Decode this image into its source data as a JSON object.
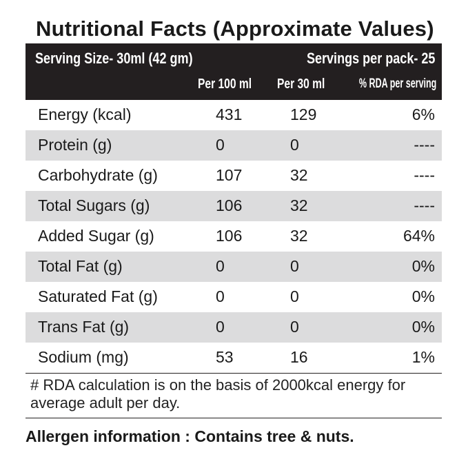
{
  "title": "Nutritional Facts (Approximate Values)",
  "header": {
    "serving_size": "Serving Size-  30ml (42 gm)",
    "servings_per_pack": "Servings per pack- 25",
    "col_per100": "Per 100 ml",
    "col_per30": "Per 30 ml",
    "col_rda": "% RDA per serving"
  },
  "rows": [
    {
      "name": "Energy (kcal)",
      "per100": "431",
      "per30": "129",
      "rda": "6%"
    },
    {
      "name": "Protein (g)",
      "per100": "0",
      "per30": "0",
      "rda": "----"
    },
    {
      "name": "Carbohydrate (g)",
      "per100": "107",
      "per30": "32",
      "rda": "----"
    },
    {
      "name": "Total Sugars (g)",
      "per100": "106",
      "per30": "32",
      "rda": "----"
    },
    {
      "name": "Added Sugar (g)",
      "per100": "106",
      "per30": "32",
      "rda": "64%"
    },
    {
      "name": "Total Fat (g)",
      "per100": "0",
      "per30": "0",
      "rda": "0%"
    },
    {
      "name": "Saturated Fat (g)",
      "per100": "0",
      "per30": "0",
      "rda": "0%"
    },
    {
      "name": "Trans Fat (g)",
      "per100": "0",
      "per30": "0",
      "rda": "0%"
    },
    {
      "name": "Sodium (mg)",
      "per100": "53",
      "per30": "16",
      "rda": "1%"
    }
  ],
  "footnote": "# RDA calculation is on the basis of 2000kcal energy for average adult per day.",
  "allergen": "Allergen information : Contains tree & nuts.",
  "colors": {
    "header_bg": "#231f20",
    "shade": "#dcdcdd"
  }
}
